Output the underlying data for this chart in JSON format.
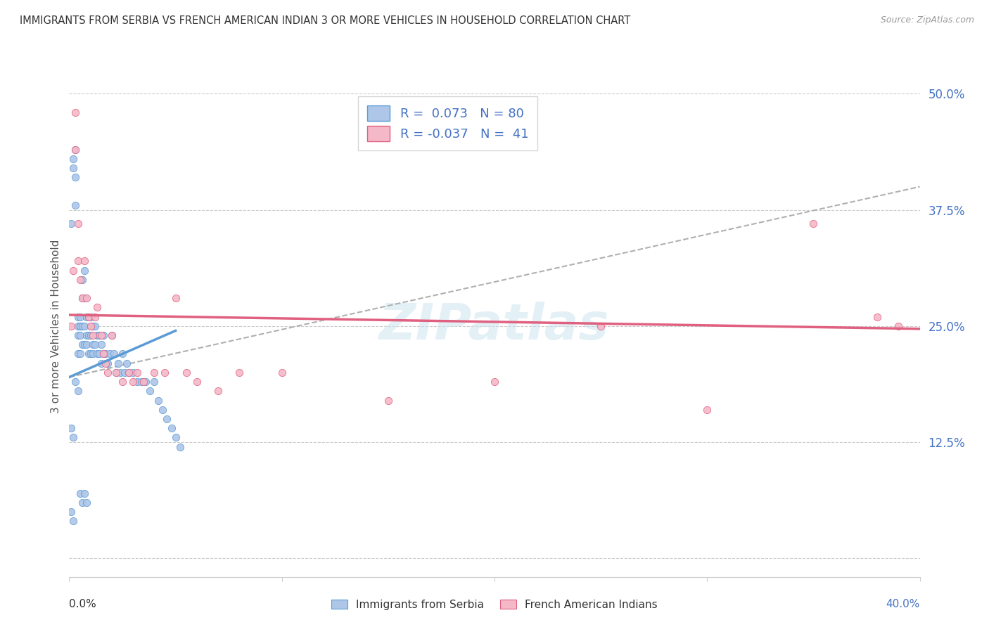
{
  "title": "IMMIGRANTS FROM SERBIA VS FRENCH AMERICAN INDIAN 3 OR MORE VEHICLES IN HOUSEHOLD CORRELATION CHART",
  "source": "Source: ZipAtlas.com",
  "ylabel": "3 or more Vehicles in Household",
  "ytick_vals": [
    0.0,
    0.125,
    0.25,
    0.375,
    0.5
  ],
  "ytick_labels": [
    "",
    "12.5%",
    "25.0%",
    "37.5%",
    "50.0%"
  ],
  "xlim": [
    0.0,
    0.4
  ],
  "ylim": [
    -0.02,
    0.52
  ],
  "serbia_color": "#aec6e8",
  "serbia_edge_color": "#5b9bd5",
  "fai_color": "#f5b8c8",
  "fai_edge_color": "#e06080",
  "watermark": "ZIPatlas",
  "dash_line_color": "#b0b0b0",
  "serbia_line_color": "#5b9bd5",
  "fai_line_color": "#e06080",
  "serbia_line_x": [
    0.0,
    0.05
  ],
  "serbia_line_y": [
    0.195,
    0.245
  ],
  "fai_line_x": [
    0.0,
    0.4
  ],
  "fai_line_y": [
    0.262,
    0.247
  ],
  "dash_line_x": [
    0.0,
    0.4
  ],
  "dash_line_y": [
    0.195,
    0.4
  ],
  "serbia_scatter_x": [
    0.001,
    0.002,
    0.002,
    0.003,
    0.003,
    0.003,
    0.004,
    0.004,
    0.004,
    0.004,
    0.005,
    0.005,
    0.005,
    0.005,
    0.005,
    0.006,
    0.006,
    0.006,
    0.006,
    0.007,
    0.007,
    0.007,
    0.007,
    0.008,
    0.008,
    0.008,
    0.009,
    0.009,
    0.009,
    0.01,
    0.01,
    0.01,
    0.01,
    0.011,
    0.011,
    0.011,
    0.012,
    0.012,
    0.013,
    0.013,
    0.014,
    0.014,
    0.015,
    0.015,
    0.016,
    0.016,
    0.017,
    0.018,
    0.019,
    0.02,
    0.021,
    0.022,
    0.023,
    0.024,
    0.025,
    0.026,
    0.027,
    0.028,
    0.03,
    0.032,
    0.034,
    0.036,
    0.038,
    0.04,
    0.042,
    0.044,
    0.046,
    0.048,
    0.05,
    0.052,
    0.001,
    0.002,
    0.003,
    0.004,
    0.005,
    0.006,
    0.007,
    0.008,
    0.001,
    0.002
  ],
  "serbia_scatter_y": [
    0.36,
    0.42,
    0.43,
    0.44,
    0.41,
    0.38,
    0.26,
    0.25,
    0.24,
    0.22,
    0.26,
    0.25,
    0.25,
    0.24,
    0.22,
    0.3,
    0.28,
    0.25,
    0.23,
    0.31,
    0.28,
    0.25,
    0.23,
    0.26,
    0.24,
    0.23,
    0.26,
    0.24,
    0.22,
    0.26,
    0.25,
    0.24,
    0.22,
    0.25,
    0.23,
    0.22,
    0.25,
    0.23,
    0.24,
    0.22,
    0.24,
    0.22,
    0.23,
    0.21,
    0.24,
    0.22,
    0.22,
    0.21,
    0.22,
    0.24,
    0.22,
    0.2,
    0.21,
    0.2,
    0.22,
    0.2,
    0.21,
    0.2,
    0.2,
    0.19,
    0.19,
    0.19,
    0.18,
    0.19,
    0.17,
    0.16,
    0.15,
    0.14,
    0.13,
    0.12,
    0.14,
    0.13,
    0.19,
    0.18,
    0.07,
    0.06,
    0.07,
    0.06,
    0.05,
    0.04
  ],
  "fai_scatter_x": [
    0.001,
    0.002,
    0.003,
    0.003,
    0.004,
    0.004,
    0.005,
    0.006,
    0.007,
    0.008,
    0.009,
    0.01,
    0.011,
    0.012,
    0.013,
    0.015,
    0.016,
    0.017,
    0.018,
    0.02,
    0.022,
    0.025,
    0.028,
    0.03,
    0.032,
    0.035,
    0.04,
    0.045,
    0.05,
    0.055,
    0.06,
    0.07,
    0.08,
    0.1,
    0.15,
    0.2,
    0.25,
    0.3,
    0.35,
    0.38,
    0.39
  ],
  "fai_scatter_y": [
    0.25,
    0.31,
    0.44,
    0.48,
    0.36,
    0.32,
    0.3,
    0.28,
    0.32,
    0.28,
    0.26,
    0.25,
    0.24,
    0.26,
    0.27,
    0.24,
    0.22,
    0.21,
    0.2,
    0.24,
    0.2,
    0.19,
    0.2,
    0.19,
    0.2,
    0.19,
    0.2,
    0.2,
    0.28,
    0.2,
    0.19,
    0.18,
    0.2,
    0.2,
    0.17,
    0.19,
    0.25,
    0.16,
    0.36,
    0.26,
    0.25
  ]
}
